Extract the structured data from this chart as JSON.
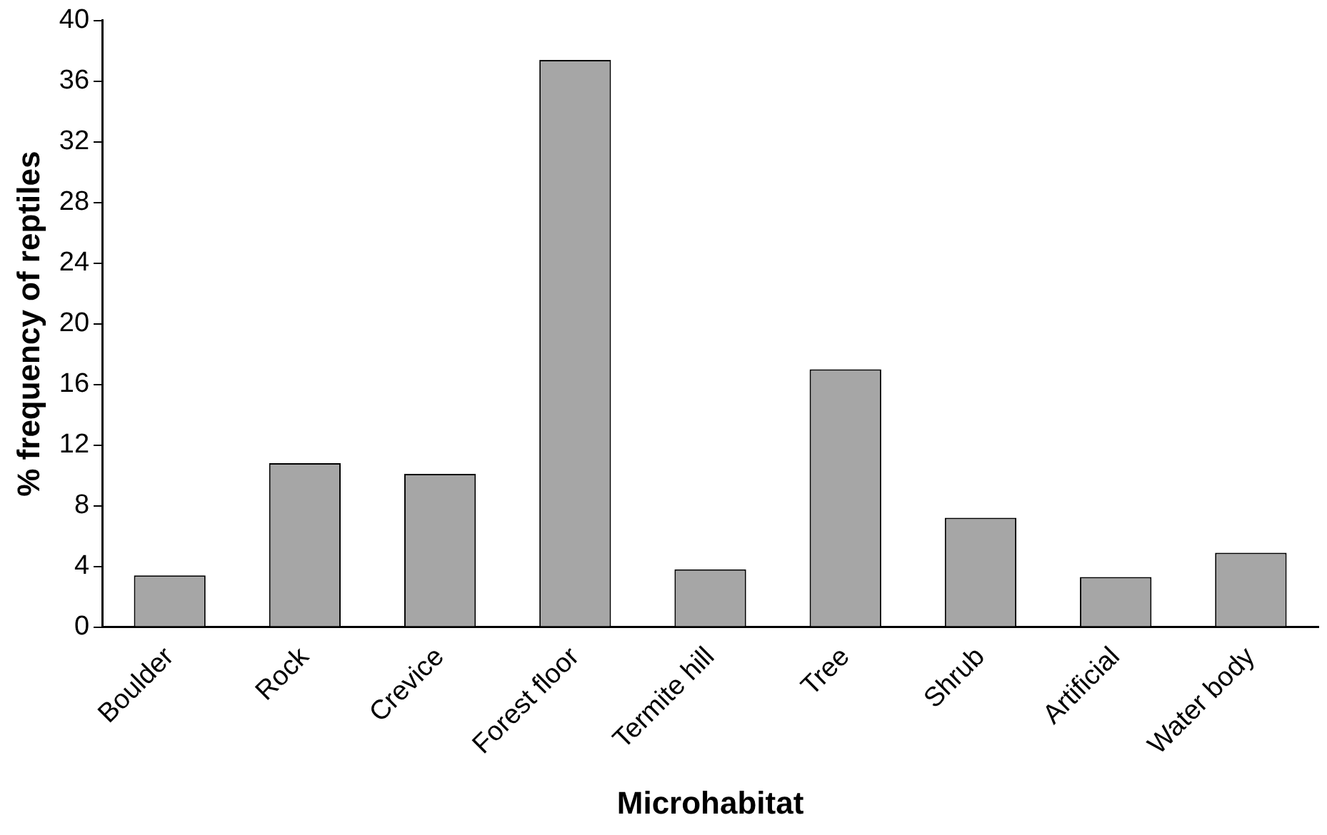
{
  "chart_data": {
    "type": "bar",
    "xlabel": "Microhabitat",
    "ylabel": "% frequency of reptiles",
    "categories": [
      "Boulder",
      "Rock",
      "Crevice",
      "Forest floor",
      "Termite hill",
      "Tree",
      "Shrub",
      "Artificial",
      "Water body"
    ],
    "values": [
      3.4,
      10.8,
      10.1,
      37.4,
      3.8,
      17,
      7.2,
      3.3,
      4.9
    ],
    "color": "#a6a6a6",
    "ylim": [
      0,
      40
    ],
    "yticks": [
      0,
      4,
      8,
      12,
      16,
      20,
      24,
      28,
      32,
      36,
      40
    ],
    "grid": false,
    "legend": false
  }
}
